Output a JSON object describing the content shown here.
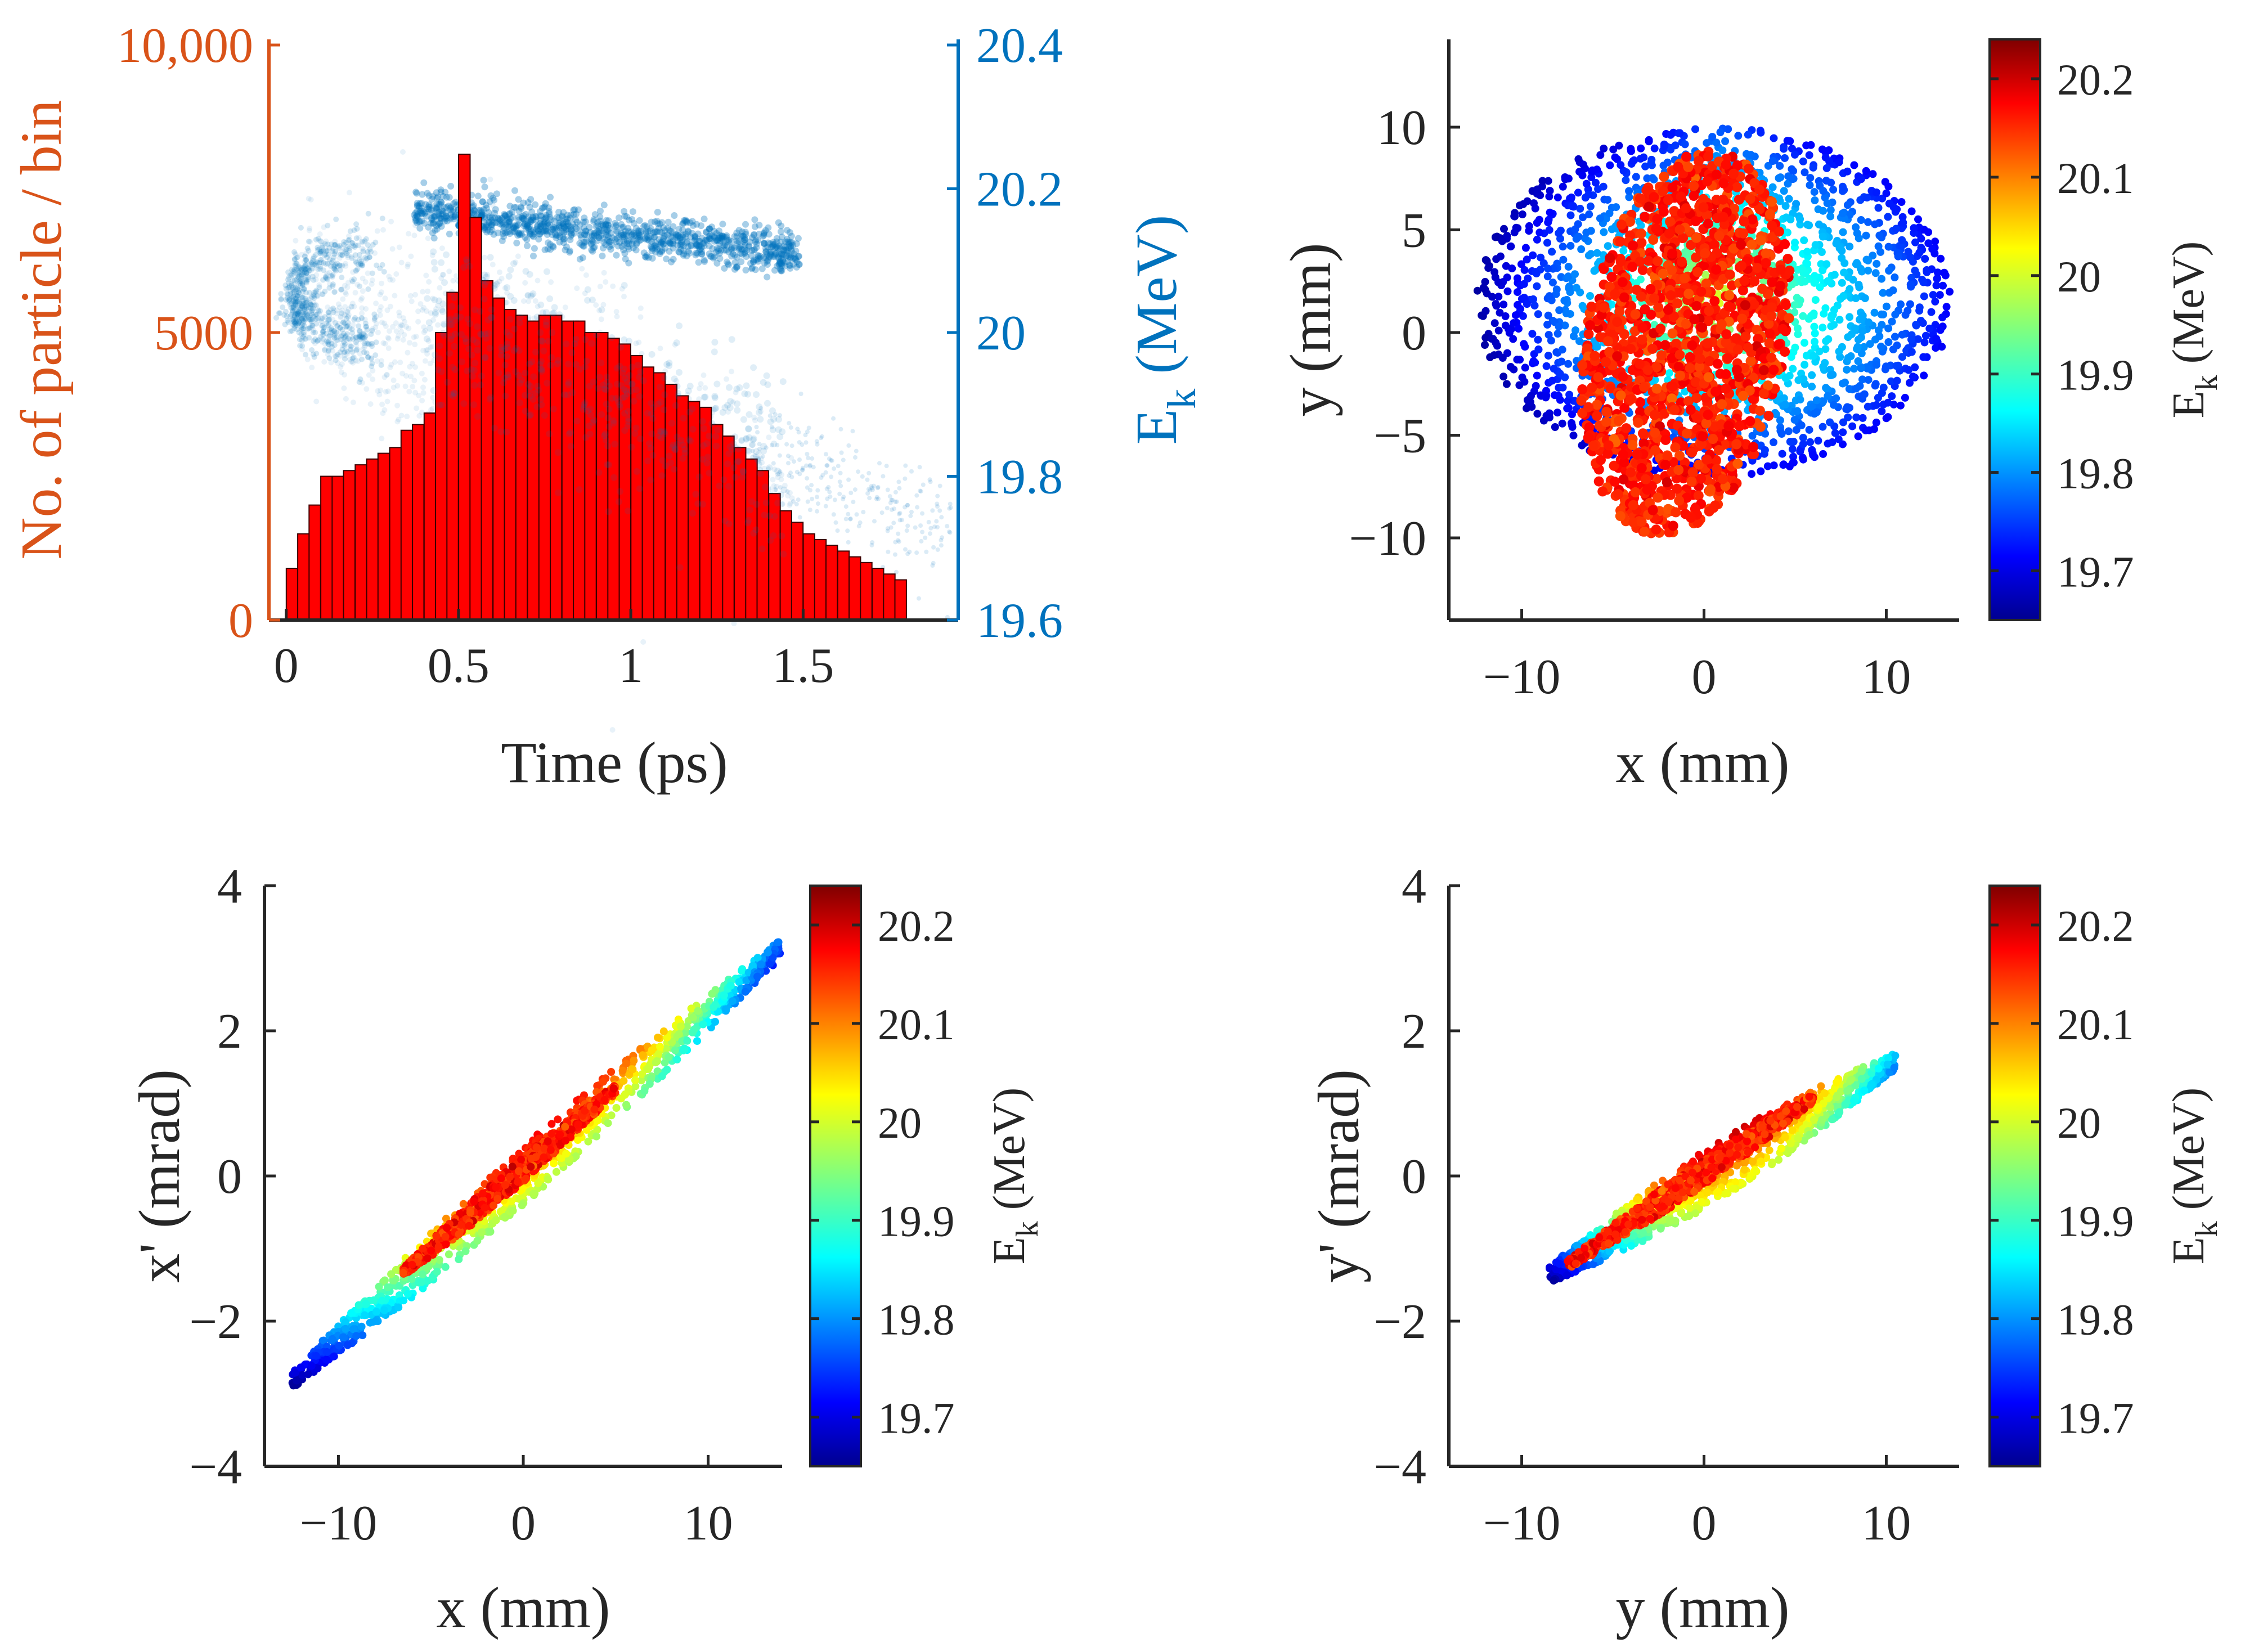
{
  "colors": {
    "left_axis": "#D95319",
    "right_axis": "#0072BD",
    "bars": "#FF0000",
    "bar_edge": "#3a0000",
    "scatter_blue": "#0072BD",
    "axis_dark": "#262626"
  },
  "colormap": "jet",
  "chart_data": [
    {
      "id": "histogram",
      "type": "bar",
      "title": "",
      "xlabel": "Time (ps)",
      "ylabel_left": "No. of particle / bin",
      "ylabel_right_base": "E",
      "ylabel_right_sub": "k",
      "ylabel_right_unit": " (MeV)",
      "xlim": [
        -0.05,
        1.95
      ],
      "ylim_left": [
        0,
        10000
      ],
      "ylim_right": [
        19.6,
        20.4
      ],
      "xticks": [
        0,
        0.5,
        1,
        1.5
      ],
      "xtick_labels": [
        "0",
        "0.5",
        "1",
        "1.5"
      ],
      "yticks_left": [
        0,
        5000,
        10000
      ],
      "ytick_labels_left": [
        "0",
        "5000",
        "10,000"
      ],
      "yticks_right": [
        19.6,
        19.8,
        20,
        20.2,
        20.4
      ],
      "ytick_labels_right": [
        "19.6",
        "19.8",
        "20",
        "20.2",
        "20.4"
      ],
      "bin_width": 0.0333,
      "bin_centers": [
        0.017,
        0.05,
        0.083,
        0.117,
        0.15,
        0.183,
        0.217,
        0.25,
        0.283,
        0.317,
        0.35,
        0.383,
        0.417,
        0.45,
        0.483,
        0.517,
        0.55,
        0.583,
        0.617,
        0.65,
        0.683,
        0.717,
        0.75,
        0.783,
        0.817,
        0.85,
        0.883,
        0.917,
        0.95,
        0.983,
        1.017,
        1.05,
        1.083,
        1.117,
        1.15,
        1.183,
        1.217,
        1.25,
        1.283,
        1.317,
        1.35,
        1.383,
        1.417,
        1.45,
        1.483,
        1.517,
        1.55,
        1.583,
        1.617,
        1.65,
        1.683,
        1.717,
        1.75,
        1.783
      ],
      "values": [
        900,
        1500,
        2000,
        2500,
        2500,
        2600,
        2700,
        2800,
        2900,
        3000,
        3300,
        3400,
        3600,
        5000,
        5700,
        8100,
        7000,
        5900,
        5600,
        5400,
        5300,
        5200,
        5300,
        5300,
        5200,
        5200,
        5000,
        5000,
        4900,
        4800,
        4600,
        4400,
        4300,
        4100,
        3900,
        3800,
        3700,
        3400,
        3200,
        3000,
        2800,
        2600,
        2200,
        1900,
        1700,
        1500,
        1400,
        1300,
        1200,
        1100,
        1000,
        900,
        800,
        700
      ]
    },
    {
      "id": "spot",
      "type": "scatter",
      "xlabel": "x (mm)",
      "ylabel": "y (mm)",
      "xlim": [
        -14,
        14
      ],
      "ylim": [
        -14,
        14
      ],
      "xticks": [
        -10,
        0,
        10
      ],
      "xtick_labels": [
        "−10",
        "0",
        "10"
      ],
      "yticks": [
        -10,
        -5,
        0,
        5,
        10
      ],
      "ytick_labels": [
        "−10",
        "−5",
        "0",
        "5",
        "10"
      ],
      "colorbar": {
        "label_base": "E",
        "label_sub": "k",
        "label_unit": " (MeV)",
        "range": [
          19.65,
          20.24
        ],
        "ticks": [
          19.7,
          19.8,
          19.9,
          20,
          20.1,
          20.2
        ],
        "tick_labels": [
          "19.7",
          "19.8",
          "19.9",
          "20",
          "20.1",
          "20.2"
        ]
      },
      "description_values": {
        "halo_center": [
          0.5,
          1.5
        ],
        "halo_semi_axes": [
          13,
          8.5
        ],
        "core_center": [
          -1.0,
          -0.5
        ],
        "core_semi_axes": [
          5.5,
          9.5
        ],
        "core_energy": 20.15
      }
    },
    {
      "id": "x_phase",
      "type": "scatter",
      "xlabel": "x (mm)",
      "ylabel_base": "x",
      "ylabel_unit": "' (mrad)",
      "xlim": [
        -14,
        14
      ],
      "ylim": [
        -4,
        4
      ],
      "xticks": [
        -10,
        0,
        10
      ],
      "xtick_labels": [
        "−10",
        "0",
        "10"
      ],
      "yticks": [
        -4,
        -2,
        0,
        2,
        4
      ],
      "ytick_labels": [
        "−4",
        "−2",
        "0",
        "2",
        "4"
      ],
      "colorbar": {
        "label_base": "E",
        "label_sub": "k",
        "label_unit": " (MeV)",
        "range": [
          19.65,
          20.24
        ],
        "ticks": [
          19.7,
          19.8,
          19.9,
          20,
          20.1,
          20.2
        ],
        "tick_labels": [
          "19.7",
          "19.8",
          "19.9",
          "20",
          "20.1",
          "20.2"
        ]
      },
      "bands": [
        {
          "x_start": -12.5,
          "x_end": 14,
          "slope": 0.225,
          "offset": 0.0,
          "energy_start": 19.68,
          "energy_end": 19.83
        },
        {
          "x_start": -6.5,
          "x_end": 5,
          "slope": 0.22,
          "offset": 0.1,
          "energy_start": 20.15,
          "energy_end": 20.15
        }
      ]
    },
    {
      "id": "y_phase",
      "type": "scatter",
      "xlabel": "y (mm)",
      "ylabel_base": "y",
      "ylabel_unit": "' (mrad)",
      "xlim": [
        -14,
        14
      ],
      "ylim": [
        -4,
        4
      ],
      "xticks": [
        -10,
        0,
        10
      ],
      "xtick_labels": [
        "−10",
        "0",
        "10"
      ],
      "yticks": [
        -4,
        -2,
        0,
        2,
        4
      ],
      "ytick_labels": [
        "−4",
        "−2",
        "0",
        "2",
        "4"
      ],
      "colorbar": {
        "label_base": "E",
        "label_sub": "k",
        "label_unit": " (MeV)",
        "range": [
          19.65,
          20.24
        ],
        "ticks": [
          19.7,
          19.8,
          19.9,
          20,
          20.1,
          20.2
        ],
        "tick_labels": [
          "19.7",
          "19.8",
          "19.9",
          "20",
          "20.1",
          "20.2"
        ]
      },
      "bands": [
        {
          "x_start": -8.5,
          "x_end": 10.5,
          "slope": 0.155,
          "offset": -0.05,
          "energy_start": 19.68,
          "energy_end": 19.95
        },
        {
          "x_start": -7.5,
          "x_end": 6,
          "slope": 0.17,
          "offset": 0.05,
          "energy_start": 20.15,
          "energy_end": 20.15
        }
      ]
    }
  ]
}
